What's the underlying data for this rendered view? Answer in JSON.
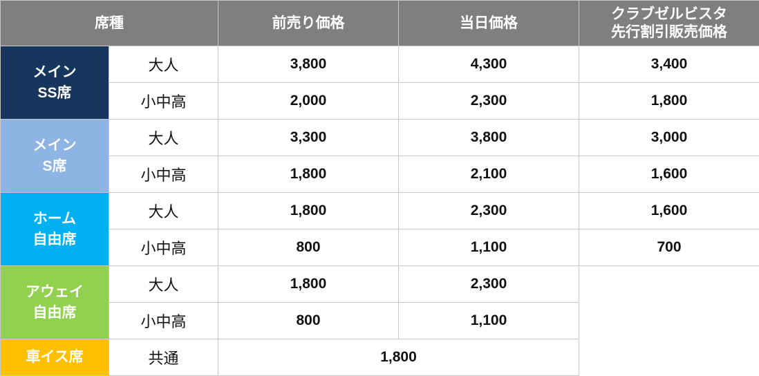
{
  "colors": {
    "header": "#7f7f7f",
    "main_ss": "#17365d",
    "main_s": "#8db4e2",
    "home": "#00b0f0",
    "away": "#92d050",
    "wheelchair": "#ffc000"
  },
  "header": {
    "seat_type": "席種",
    "advance": "前売り価格",
    "day_of": "当日価格",
    "club": "クラブゼルビスタ\n先行割引販売価格"
  },
  "rows": [
    {
      "category": "メイン\nSS席",
      "items": [
        {
          "age": "大人",
          "advance": "3,800",
          "day_of": "4,300",
          "club": "3,400"
        },
        {
          "age": "小中高",
          "advance": "2,000",
          "day_of": "2,300",
          "club": "1,800"
        }
      ]
    },
    {
      "category": "メイン\nS席",
      "items": [
        {
          "age": "大人",
          "advance": "3,300",
          "day_of": "3,800",
          "club": "3,000"
        },
        {
          "age": "小中高",
          "advance": "1,800",
          "day_of": "2,100",
          "club": "1,600"
        }
      ]
    },
    {
      "category": "ホーム\n自由席",
      "items": [
        {
          "age": "大人",
          "advance": "1,800",
          "day_of": "2,300",
          "club": "1,600"
        },
        {
          "age": "小中高",
          "advance": "800",
          "day_of": "1,100",
          "club": "700"
        }
      ]
    },
    {
      "category": "アウェイ\n自由席",
      "items": [
        {
          "age": "大人",
          "advance": "1,800",
          "day_of": "2,300"
        },
        {
          "age": "小中高",
          "advance": "800",
          "day_of": "1,100"
        }
      ]
    },
    {
      "category": "車イス席",
      "items": [
        {
          "age": "共通",
          "price": "1,800"
        }
      ]
    }
  ]
}
